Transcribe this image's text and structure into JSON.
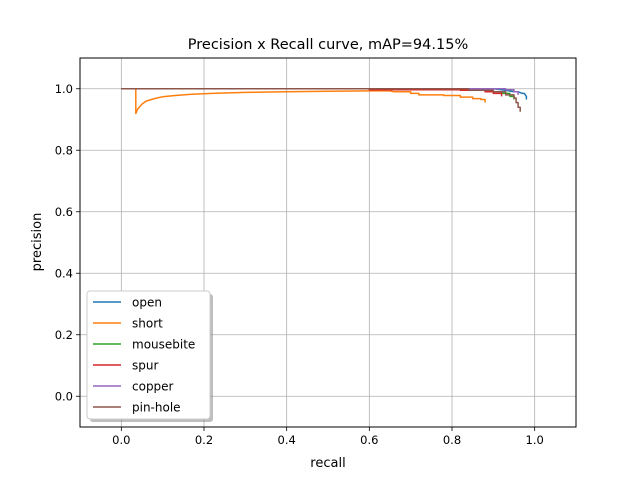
{
  "chart_data": {
    "type": "line",
    "title": "Precision x Recall curve, mAP=94.15%",
    "xlabel": "recall",
    "ylabel": "precision",
    "xlim": [
      -0.1,
      1.1
    ],
    "ylim": [
      -0.1,
      1.1
    ],
    "xticks": [
      0.0,
      0.2,
      0.4,
      0.6,
      0.8,
      1.0
    ],
    "xtick_labels": [
      "0.0",
      "0.2",
      "0.4",
      "0.6",
      "0.8",
      "1.0"
    ],
    "yticks": [
      0.0,
      0.2,
      0.4,
      0.6,
      0.8,
      1.0
    ],
    "ytick_labels": [
      "0.0",
      "0.2",
      "0.4",
      "0.6",
      "0.8",
      "1.0"
    ],
    "grid": true,
    "legend_position": "lower-left",
    "series": [
      {
        "name": "open",
        "color": "#1f77b4",
        "x": [
          0.0,
          0.9,
          0.93,
          0.95,
          0.96,
          0.97,
          0.975,
          0.98,
          0.98
        ],
        "y": [
          1.0,
          1.0,
          0.995,
          0.99,
          0.99,
          0.985,
          0.985,
          0.975,
          0.965
        ]
      },
      {
        "name": "short",
        "color": "#ff7f0e",
        "x": [
          0.0,
          0.035,
          0.035,
          0.04,
          0.05,
          0.06,
          0.08,
          0.1,
          0.13,
          0.17,
          0.22,
          0.3,
          0.4,
          0.5,
          0.6,
          0.65,
          0.66,
          0.7,
          0.7,
          0.72,
          0.72,
          0.78,
          0.78,
          0.82,
          0.82,
          0.85,
          0.85,
          0.87,
          0.87,
          0.88,
          0.88
        ],
        "y": [
          1.0,
          1.0,
          0.92,
          0.935,
          0.95,
          0.96,
          0.968,
          0.974,
          0.978,
          0.982,
          0.985,
          0.988,
          0.99,
          0.992,
          0.993,
          0.993,
          0.99,
          0.99,
          0.985,
          0.985,
          0.98,
          0.98,
          0.978,
          0.978,
          0.973,
          0.973,
          0.968,
          0.968,
          0.965,
          0.965,
          0.955
        ]
      },
      {
        "name": "mousebite",
        "color": "#2ca02c",
        "x": [
          0.0,
          0.87,
          0.87,
          0.9,
          0.9,
          0.92,
          0.92,
          0.94,
          0.94,
          0.95,
          0.95
        ],
        "y": [
          1.0,
          1.0,
          0.995,
          0.995,
          0.99,
          0.99,
          0.985,
          0.985,
          0.975,
          0.975,
          0.965
        ]
      },
      {
        "name": "spur",
        "color": "#d62728",
        "x": [
          0.0,
          0.6,
          0.6,
          0.82,
          0.82,
          0.88,
          0.88,
          0.9,
          0.9,
          0.92,
          0.92
        ],
        "y": [
          1.0,
          1.0,
          0.997,
          0.997,
          0.995,
          0.995,
          0.99,
          0.99,
          0.985,
          0.985,
          0.975
        ]
      },
      {
        "name": "copper",
        "color": "#9467bd",
        "x": [
          0.0,
          0.93,
          0.93,
          0.95,
          0.95,
          0.96,
          0.96
        ],
        "y": [
          1.0,
          1.0,
          0.997,
          0.997,
          0.99,
          0.99,
          0.98
        ]
      },
      {
        "name": "pin-hole",
        "color": "#8c564b",
        "x": [
          0.0,
          0.84,
          0.84,
          0.9,
          0.9,
          0.93,
          0.93,
          0.95,
          0.95,
          0.955,
          0.955,
          0.96,
          0.96,
          0.965,
          0.965
        ],
        "y": [
          1.0,
          1.0,
          0.995,
          0.995,
          0.99,
          0.99,
          0.98,
          0.98,
          0.97,
          0.97,
          0.955,
          0.955,
          0.94,
          0.94,
          0.925
        ]
      }
    ]
  }
}
